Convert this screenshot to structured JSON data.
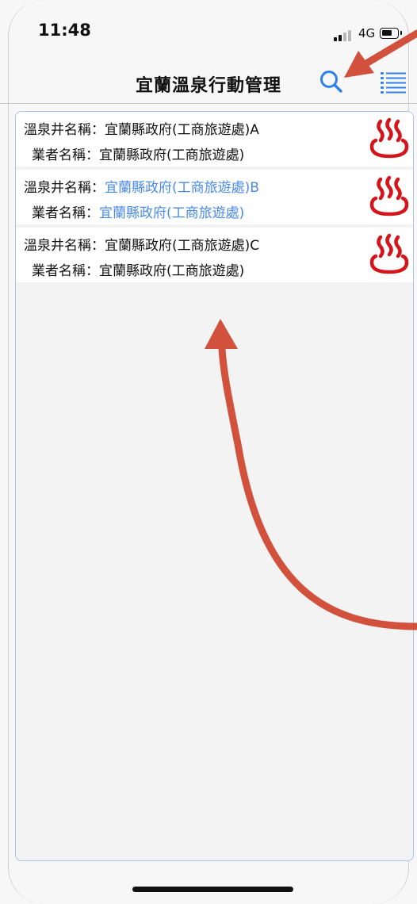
{
  "status_bar": {
    "time": "11:48",
    "network": "4G"
  },
  "nav": {
    "title": "宜蘭溫泉行動管理",
    "search_icon": "search-icon",
    "list_icon": "list-icon"
  },
  "colors": {
    "accent": "#2f80ed",
    "selected_text": "#4a8ae8",
    "hot_spring_icon": "#d4161c",
    "annotation_arrow": "#d1513c"
  },
  "wells": [
    {
      "well_label": "溫泉井名稱：",
      "well_name": "宜蘭縣政府(工商旅遊處)A",
      "operator_label": "業者名稱：",
      "operator_name": "宜蘭縣政府(工商旅遊處)",
      "selected": false
    },
    {
      "well_label": "溫泉井名稱：",
      "well_name": "宜蘭縣政府(工商旅遊處)B",
      "operator_label": "業者名稱：",
      "operator_name": "宜蘭縣政府(工商旅遊處)",
      "selected": true
    },
    {
      "well_label": "溫泉井名稱：",
      "well_name": "宜蘭縣政府(工商旅遊處)C",
      "operator_label": "業者名稱：",
      "operator_name": "宜蘭縣政府(工商旅遊處)",
      "selected": false
    }
  ]
}
